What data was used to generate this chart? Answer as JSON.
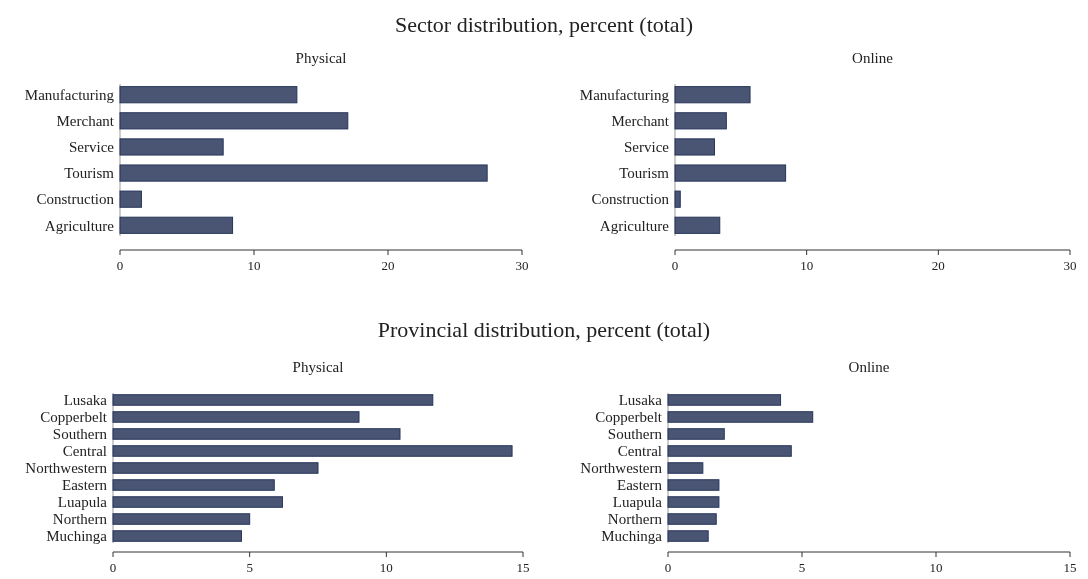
{
  "chart_data": [
    {
      "type": "bar",
      "orientation": "horizontal",
      "title": "Sector distribution, percent (total)",
      "subtitle": "Physical",
      "categories": [
        "Manufacturing",
        "Merchant",
        "Service",
        "Tourism",
        "Construction",
        "Agriculture"
      ],
      "values": [
        13.2,
        17.0,
        7.7,
        27.4,
        1.6,
        8.4
      ],
      "color": "#4a5574",
      "xlim": [
        0,
        30
      ],
      "xticks": [
        0,
        10,
        20,
        30
      ],
      "grid": false
    },
    {
      "type": "bar",
      "orientation": "horizontal",
      "subtitle": "Online",
      "categories": [
        "Manufacturing",
        "Merchant",
        "Service",
        "Tourism",
        "Construction",
        "Agriculture"
      ],
      "values": [
        5.7,
        3.9,
        3.0,
        8.4,
        0.4,
        3.4
      ],
      "color": "#4a5574",
      "xlim": [
        0,
        30
      ],
      "xticks": [
        0,
        10,
        20,
        30
      ],
      "grid": false
    },
    {
      "type": "bar",
      "orientation": "horizontal",
      "title": "Provincial distribution, percent (total)",
      "subtitle": "Physical",
      "categories": [
        "Lusaka",
        "Copperbelt",
        "Southern",
        "Central",
        "Northwestern",
        "Eastern",
        "Luapula",
        "Northern",
        "Muchinga"
      ],
      "values": [
        11.7,
        9.0,
        10.5,
        14.6,
        7.5,
        5.9,
        6.2,
        5.0,
        4.7
      ],
      "color": "#4a5574",
      "xlim": [
        0,
        15
      ],
      "xticks": [
        0,
        5,
        10,
        15
      ],
      "grid": false
    },
    {
      "type": "bar",
      "orientation": "horizontal",
      "subtitle": "Online",
      "categories": [
        "Lusaka",
        "Copperbelt",
        "Southern",
        "Central",
        "Northwestern",
        "Eastern",
        "Luapula",
        "Northern",
        "Muchinga"
      ],
      "values": [
        4.2,
        5.4,
        2.1,
        4.6,
        1.3,
        1.9,
        1.9,
        1.8,
        1.5
      ],
      "color": "#4a5574",
      "xlim": [
        0,
        15
      ],
      "xticks": [
        0,
        5,
        10,
        15
      ],
      "grid": false
    }
  ]
}
